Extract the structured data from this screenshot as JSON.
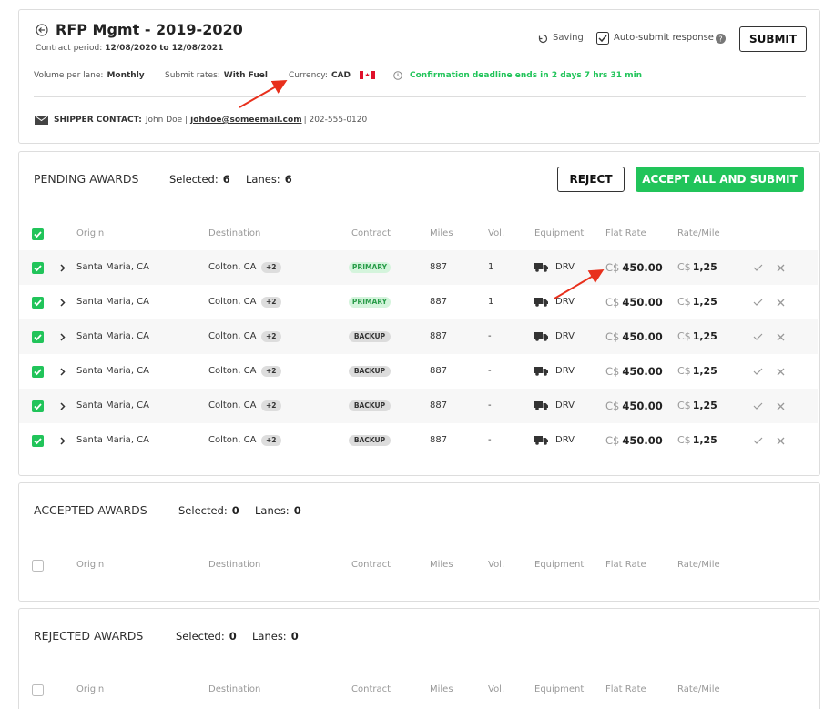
{
  "header": {
    "title": "RFP Mgmt - 2019-2020",
    "contract_period_label": "Contract period:",
    "contract_period": "12/08/2020 to 12/08/2021",
    "saving": "Saving",
    "auto_submit": "Auto-submit response",
    "submit": "SUBMIT",
    "volume_label": "Volume per lane:",
    "volume": "Monthly",
    "submit_rates_label": "Submit rates:",
    "submit_rates": "With Fuel",
    "currency_label": "Currency:",
    "currency": "CAD",
    "deadline": "Confirmation deadline ends in 2 days 7 hrs 31 min",
    "shipper_label": "SHIPPER CONTACT:",
    "shipper_name": "John Doe |",
    "email": "johdoe@someemail.com",
    "phone": "| 202-555-0120"
  },
  "columns": [
    "Origin",
    "Destination",
    "Contract",
    "Miles",
    "Vol.",
    "Equipment",
    "Flat Rate",
    "Rate/Mile"
  ],
  "pending": {
    "title": "PENDING AWARDS",
    "selected_label": "Selected:",
    "selected": "6",
    "lanes_label": "Lanes:",
    "lanes": "6",
    "reject": "REJECT",
    "accept": "ACCEPT ALL AND SUBMIT",
    "rows": [
      {
        "origin": "Santa Maria, CA",
        "destination": "Colton, CA",
        "extra": "+2",
        "contract": "PRIMARY",
        "miles": "887",
        "vol": "1",
        "equipment": "DRV",
        "flat_rate_currency": "C$",
        "flat_rate": "450.00",
        "rate_currency": "C$",
        "rate_mile": "1,25"
      },
      {
        "origin": "Santa Maria, CA",
        "destination": "Colton, CA",
        "extra": "+2",
        "contract": "PRIMARY",
        "miles": "887",
        "vol": "1",
        "equipment": "DRV",
        "flat_rate_currency": "C$",
        "flat_rate": "450.00",
        "rate_currency": "C$",
        "rate_mile": "1,25"
      },
      {
        "origin": "Santa Maria, CA",
        "destination": "Colton, CA",
        "extra": "+2",
        "contract": "BACKUP",
        "miles": "887",
        "vol": "-",
        "equipment": "DRV",
        "flat_rate_currency": "C$",
        "flat_rate": "450.00",
        "rate_currency": "C$",
        "rate_mile": "1,25"
      },
      {
        "origin": "Santa Maria, CA",
        "destination": "Colton, CA",
        "extra": "+2",
        "contract": "BACKUP",
        "miles": "887",
        "vol": "-",
        "equipment": "DRV",
        "flat_rate_currency": "C$",
        "flat_rate": "450.00",
        "rate_currency": "C$",
        "rate_mile": "1,25"
      },
      {
        "origin": "Santa Maria, CA",
        "destination": "Colton, CA",
        "extra": "+2",
        "contract": "BACKUP",
        "miles": "887",
        "vol": "-",
        "equipment": "DRV",
        "flat_rate_currency": "C$",
        "flat_rate": "450.00",
        "rate_currency": "C$",
        "rate_mile": "1,25"
      },
      {
        "origin": "Santa Maria, CA",
        "destination": "Colton, CA",
        "extra": "+2",
        "contract": "BACKUP",
        "miles": "887",
        "vol": "-",
        "equipment": "DRV",
        "flat_rate_currency": "C$",
        "flat_rate": "450.00",
        "rate_currency": "C$",
        "rate_mile": "1,25"
      }
    ]
  },
  "accepted": {
    "title": "ACCEPTED AWARDS",
    "selected_label": "Selected:",
    "selected": "0",
    "lanes_label": "Lanes:",
    "lanes": "0"
  },
  "rejected": {
    "title": "REJECTED AWARDS",
    "selected_label": "Selected:",
    "selected": "0",
    "lanes_label": "Lanes:",
    "lanes": "0"
  }
}
